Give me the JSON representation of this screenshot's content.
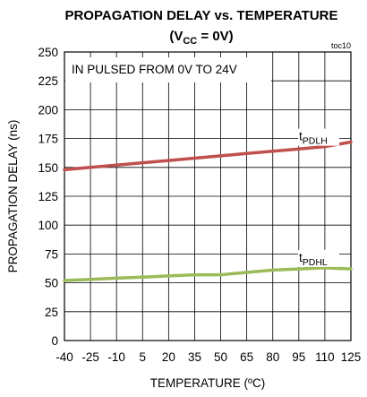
{
  "chart_data": {
    "type": "line",
    "title": "PROPAGATION DELAY vs. TEMPERATURE",
    "subtitle": {
      "pre": "(V",
      "sub": "CC",
      "post": " = 0V)"
    },
    "figure_id": "toc10",
    "annotation": "IN PULSED FROM 0V TO 24V",
    "xlabel": "TEMPERATURE (ºC)",
    "ylabel": "PROPAGATION DELAY (ns)",
    "xlim": [
      -40,
      125
    ],
    "ylim": [
      0,
      250
    ],
    "xticks": [
      "-40",
      "-25",
      "-10",
      "5",
      "20",
      "35",
      "50",
      "65",
      "80",
      "95",
      "110",
      "125"
    ],
    "yticks": [
      "0",
      "25",
      "50",
      "75",
      "100",
      "125",
      "150",
      "175",
      "200",
      "225",
      "250"
    ],
    "grid": true,
    "series": [
      {
        "name": {
          "pre": "t",
          "sub": "PDLH"
        },
        "color": "#c0504d",
        "x": [
          -40,
          -25,
          -10,
          5,
          20,
          35,
          50,
          65,
          80,
          95,
          110,
          125
        ],
        "y": [
          148,
          150,
          152,
          154,
          156,
          158,
          160,
          162,
          164,
          166,
          168,
          172
        ]
      },
      {
        "name": {
          "pre": "t",
          "sub": "PDHL"
        },
        "color": "#9bbb59",
        "x": [
          -40,
          -25,
          -10,
          5,
          20,
          35,
          50,
          65,
          80,
          95,
          110,
          125
        ],
        "y": [
          52,
          53,
          54,
          55,
          56,
          57,
          57,
          59,
          61,
          62,
          63,
          62
        ]
      }
    ]
  }
}
